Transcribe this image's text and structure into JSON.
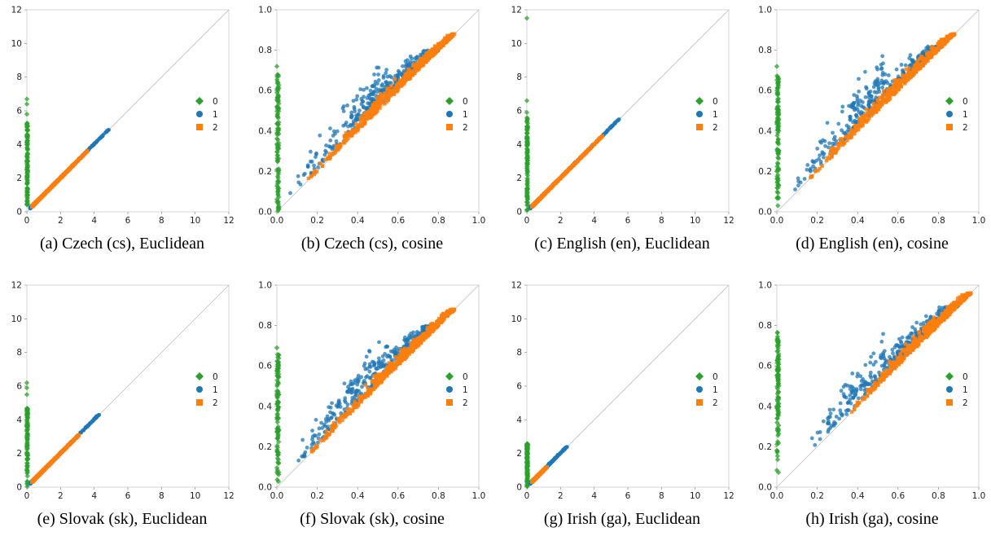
{
  "figure": {
    "palette": {
      "0": "#2ca02c",
      "1": "#1f77b4",
      "2": "#ff7f0e"
    },
    "legend_labels": [
      "0",
      "1",
      "2"
    ],
    "legend_position": "right"
  },
  "chart_data": [
    {
      "id": "a",
      "type": "scatter",
      "caption": "(a) Czech (cs), Euclidean",
      "metric": "euclidean",
      "xlim": [
        0,
        12
      ],
      "ylim": [
        0,
        12
      ],
      "ticks": [
        "0",
        "2",
        "4",
        "6",
        "8",
        "10",
        "12"
      ],
      "diagonal": true,
      "series": [
        {
          "name": "0",
          "marker": "diamond",
          "x_range": [
            0,
            0.05
          ],
          "y_range": [
            0,
            5.3
          ],
          "outliers": [
            [
              0,
              6.4
            ],
            [
              0,
              6.7
            ],
            [
              0,
              5.8
            ]
          ]
        },
        {
          "name": "1",
          "marker": "circle",
          "x_range": [
            0.2,
            4.9
          ],
          "y_range": [
            0.2,
            4.9
          ]
        },
        {
          "name": "2",
          "marker": "square",
          "x_range": [
            0.3,
            3.6
          ],
          "y_range": [
            0.3,
            3.7
          ]
        }
      ]
    },
    {
      "id": "b",
      "type": "scatter",
      "caption": "(b) Czech (cs), cosine",
      "metric": "cosine",
      "xlim": [
        0,
        1
      ],
      "ylim": [
        0,
        1
      ],
      "ticks": [
        "0.0",
        "0.2",
        "0.4",
        "0.6",
        "0.8",
        "1.0"
      ],
      "diagonal": true,
      "series": [
        {
          "name": "0",
          "marker": "diamond",
          "x_range": [
            0,
            0.01
          ],
          "y_range": [
            0,
            0.68
          ],
          "outliers": [
            [
              0,
              0.72
            ]
          ]
        },
        {
          "name": "1",
          "marker": "circle",
          "x_range": [
            0.05,
            0.8
          ],
          "y_range": [
            0.05,
            0.8
          ]
        },
        {
          "name": "2",
          "marker": "square",
          "x_range": [
            0.15,
            0.88
          ],
          "y_range": [
            0.15,
            0.88
          ]
        }
      ]
    },
    {
      "id": "c",
      "type": "scatter",
      "caption": "(c) English (en), Euclidean",
      "metric": "euclidean",
      "xlim": [
        0,
        12
      ],
      "ylim": [
        0,
        12
      ],
      "ticks": [
        "0",
        "2",
        "4",
        "6",
        "8",
        "10",
        "12"
      ],
      "diagonal": true,
      "series": [
        {
          "name": "0",
          "marker": "diamond",
          "x_range": [
            0,
            0.05
          ],
          "y_range": [
            0,
            5.6
          ],
          "outliers": [
            [
              0,
              11.5
            ],
            [
              0,
              6.6
            ],
            [
              0,
              5.9
            ]
          ]
        },
        {
          "name": "1",
          "marker": "circle",
          "x_range": [
            0.2,
            5.5
          ],
          "y_range": [
            0.2,
            5.5
          ]
        },
        {
          "name": "2",
          "marker": "square",
          "x_range": [
            0.3,
            4.5
          ],
          "y_range": [
            0.3,
            4.5
          ]
        }
      ]
    },
    {
      "id": "d",
      "type": "scatter",
      "caption": "(d) English (en), cosine",
      "metric": "cosine",
      "xlim": [
        0,
        1
      ],
      "ylim": [
        0,
        1
      ],
      "ticks": [
        "0.0",
        "0.2",
        "0.4",
        "0.6",
        "0.8",
        "1.0"
      ],
      "diagonal": true,
      "series": [
        {
          "name": "0",
          "marker": "diamond",
          "x_range": [
            0,
            0.01
          ],
          "y_range": [
            0,
            0.68
          ],
          "outliers": [
            [
              0,
              0.72
            ]
          ]
        },
        {
          "name": "1",
          "marker": "circle",
          "x_range": [
            0.05,
            0.82
          ],
          "y_range": [
            0.05,
            0.82
          ]
        },
        {
          "name": "2",
          "marker": "square",
          "x_range": [
            0.15,
            0.88
          ],
          "y_range": [
            0.15,
            0.88
          ]
        }
      ]
    },
    {
      "id": "e",
      "type": "scatter",
      "caption": "(e) Slovak (sk), Euclidean",
      "metric": "euclidean",
      "xlim": [
        0,
        12
      ],
      "ylim": [
        0,
        12
      ],
      "ticks": [
        "0",
        "2",
        "4",
        "6",
        "8",
        "10",
        "12"
      ],
      "diagonal": true,
      "series": [
        {
          "name": "0",
          "marker": "diamond",
          "x_range": [
            0,
            0.05
          ],
          "y_range": [
            0,
            4.7
          ],
          "outliers": [
            [
              0,
              6.2
            ],
            [
              0,
              5.9
            ],
            [
              0,
              5.5
            ]
          ]
        },
        {
          "name": "1",
          "marker": "circle",
          "x_range": [
            0.2,
            4.3
          ],
          "y_range": [
            0.2,
            4.3
          ]
        },
        {
          "name": "2",
          "marker": "square",
          "x_range": [
            0.3,
            3.1
          ],
          "y_range": [
            0.3,
            3.1
          ]
        }
      ]
    },
    {
      "id": "f",
      "type": "scatter",
      "caption": "(f) Slovak (sk), cosine",
      "metric": "cosine",
      "xlim": [
        0,
        1
      ],
      "ylim": [
        0,
        1
      ],
      "ticks": [
        "0.0",
        "0.2",
        "0.4",
        "0.6",
        "0.8",
        "1.0"
      ],
      "diagonal": true,
      "series": [
        {
          "name": "0",
          "marker": "diamond",
          "x_range": [
            0,
            0.01
          ],
          "y_range": [
            0,
            0.66
          ],
          "outliers": [
            [
              0,
              0.69
            ]
          ]
        },
        {
          "name": "1",
          "marker": "circle",
          "x_range": [
            0.05,
            0.8
          ],
          "y_range": [
            0.05,
            0.8
          ]
        },
        {
          "name": "2",
          "marker": "square",
          "x_range": [
            0.15,
            0.88
          ],
          "y_range": [
            0.15,
            0.88
          ]
        }
      ]
    },
    {
      "id": "g",
      "type": "scatter",
      "caption": "(g) Irish (ga), Euclidean",
      "metric": "euclidean",
      "xlim": [
        0,
        12
      ],
      "ylim": [
        0,
        12
      ],
      "ticks": [
        "0",
        "2",
        "4",
        "6",
        "8",
        "10",
        "12"
      ],
      "diagonal": true,
      "series": [
        {
          "name": "0",
          "marker": "diamond",
          "x_range": [
            0,
            0.05
          ],
          "y_range": [
            0,
            2.6
          ],
          "outliers": []
        },
        {
          "name": "1",
          "marker": "circle",
          "x_range": [
            0.2,
            2.4
          ],
          "y_range": [
            0.2,
            2.4
          ]
        },
        {
          "name": "2",
          "marker": "square",
          "x_range": [
            0.3,
            1.2
          ],
          "y_range": [
            0.3,
            1.2
          ]
        }
      ]
    },
    {
      "id": "h",
      "type": "scatter",
      "caption": "(h) Irish (ga), cosine",
      "metric": "cosine",
      "xlim": [
        0,
        1
      ],
      "ylim": [
        0,
        1
      ],
      "ticks": [
        "0.0",
        "0.2",
        "0.4",
        "0.6",
        "0.8",
        "1.0"
      ],
      "diagonal": true,
      "series": [
        {
          "name": "0",
          "marker": "diamond",
          "x_range": [
            0,
            0.01
          ],
          "y_range": [
            0.05,
            0.77
          ],
          "outliers": []
        },
        {
          "name": "1",
          "marker": "circle",
          "x_range": [
            0.15,
            0.9
          ],
          "y_range": [
            0.2,
            0.9
          ]
        },
        {
          "name": "2",
          "marker": "square",
          "x_range": [
            0.35,
            0.96
          ],
          "y_range": [
            0.35,
            0.96
          ]
        }
      ]
    }
  ]
}
